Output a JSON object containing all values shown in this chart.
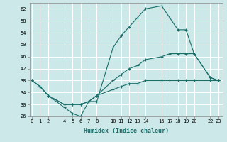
{
  "xlabel": "Humidex (Indice chaleur)",
  "ylabel": "",
  "bg_color": "#cce8e8",
  "grid_color": "#b8d8d8",
  "line_color": "#1a6e6a",
  "marker": "+",
  "ylim": [
    26,
    64
  ],
  "yticks": [
    26,
    30,
    34,
    38,
    42,
    46,
    50,
    54,
    58,
    62
  ],
  "xticks": [
    0,
    1,
    2,
    4,
    5,
    6,
    7,
    8,
    10,
    11,
    12,
    13,
    14,
    16,
    17,
    18,
    19,
    20,
    22,
    23
  ],
  "xlim": [
    -0.3,
    23.5
  ],
  "series": [
    {
      "x": [
        0,
        1,
        2,
        4,
        5,
        6,
        7,
        8,
        10,
        11,
        12,
        13,
        14,
        16,
        17,
        18,
        19,
        20,
        22,
        23
      ],
      "y": [
        38,
        36,
        33,
        29,
        27,
        26,
        31,
        31,
        49,
        53,
        56,
        59,
        62,
        63,
        59,
        55,
        55,
        47,
        39,
        38
      ]
    },
    {
      "x": [
        0,
        1,
        2,
        4,
        5,
        6,
        7,
        8,
        10,
        11,
        12,
        13,
        14,
        16,
        17,
        18,
        19,
        20,
        22,
        23
      ],
      "y": [
        38,
        36,
        33,
        30,
        30,
        30,
        31,
        33,
        38,
        40,
        42,
        43,
        45,
        46,
        47,
        47,
        47,
        47,
        39,
        38
      ]
    },
    {
      "x": [
        0,
        1,
        2,
        4,
        5,
        6,
        7,
        8,
        10,
        11,
        12,
        13,
        14,
        16,
        17,
        18,
        19,
        20,
        22,
        23
      ],
      "y": [
        38,
        36,
        33,
        30,
        30,
        30,
        31,
        33,
        35,
        36,
        37,
        37,
        38,
        38,
        38,
        38,
        38,
        38,
        38,
        38
      ]
    }
  ]
}
